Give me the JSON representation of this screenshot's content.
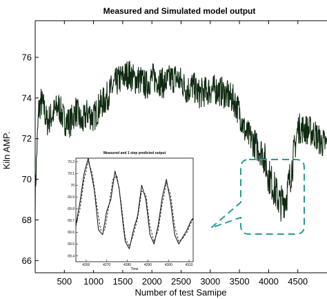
{
  "chart_data": {
    "type": "line",
    "title": "Measured and Simulated model output",
    "xlabel": "Number of test Samipe",
    "ylabel": "Kiln AMP.",
    "xlim": [
      0,
      5000
    ],
    "ylim": [
      65.4,
      77.8
    ],
    "xticks": [
      500,
      1000,
      1500,
      2000,
      2500,
      3000,
      3500,
      4000,
      4500
    ],
    "yticks": [
      66,
      68,
      70,
      72,
      74,
      76
    ],
    "line_color": "#0f2a10",
    "series": [
      {
        "x": [
          0,
          30,
          60,
          100,
          150,
          200,
          300,
          400,
          500,
          600,
          700,
          800,
          900,
          1000,
          1100,
          1200,
          1300,
          1400,
          1500,
          1600,
          1700,
          1800,
          1900,
          2000,
          2100,
          2200,
          2300,
          2400,
          2500,
          2600,
          2700,
          2800,
          2900,
          3000,
          3100,
          3200,
          3300,
          3400,
          3500,
          3600,
          3700,
          3800,
          3900,
          4000,
          4100,
          4200,
          4300,
          4400,
          4500,
          4600,
          4700,
          4800,
          4900,
          5000
        ],
        "values": [
          69.2,
          71.5,
          73.4,
          73.8,
          73.5,
          72.8,
          73.2,
          73.6,
          72.9,
          72.8,
          73.4,
          72.7,
          73.3,
          73.0,
          73.6,
          73.9,
          74.4,
          74.8,
          75.0,
          75.2,
          74.9,
          74.9,
          74.6,
          75.0,
          74.9,
          74.7,
          74.9,
          75.0,
          74.8,
          74.4,
          74.6,
          74.2,
          74.3,
          74.4,
          74.4,
          74.3,
          74.1,
          73.9,
          73.3,
          72.3,
          72.0,
          71.6,
          71.3,
          70.2,
          69.5,
          68.8,
          69.1,
          70.6,
          72.5,
          72.5,
          72.4,
          72.2,
          71.8,
          71.7
        ]
      }
    ],
    "inset": {
      "title": "Measured and 1 step predicted output",
      "xlabel": "Time",
      "xlim": [
        4255,
        4312
      ],
      "ylim": [
        69.35,
        70.23
      ],
      "xticks": [
        4260,
        4270,
        4280,
        4290,
        4300,
        4310
      ],
      "yticks": [
        69.4,
        69.5,
        69.6,
        69.7,
        69.8,
        69.9,
        70,
        70.1,
        70.2
      ],
      "series": [
        {
          "style": "solid",
          "x": [
            4255,
            4257,
            4259,
            4261,
            4262,
            4264,
            4266,
            4268,
            4270,
            4272,
            4274,
            4276,
            4278,
            4279,
            4281,
            4283,
            4285,
            4287,
            4289,
            4291,
            4293,
            4295,
            4297,
            4299,
            4301,
            4303,
            4305,
            4307,
            4309,
            4311,
            4312
          ],
          "values": [
            69.66,
            69.86,
            70.1,
            70.23,
            70.14,
            69.96,
            69.62,
            69.58,
            69.78,
            69.88,
            70.12,
            69.98,
            69.66,
            69.52,
            69.46,
            69.62,
            69.74,
            70.0,
            69.88,
            69.58,
            69.5,
            69.66,
            69.9,
            70.05,
            69.86,
            69.58,
            69.5,
            69.56,
            69.62,
            69.7,
            69.72
          ]
        },
        {
          "style": "dashed",
          "x": [
            4255,
            4257,
            4259,
            4261,
            4263,
            4265,
            4267,
            4269,
            4271,
            4273,
            4275,
            4277,
            4279,
            4281,
            4283,
            4285,
            4287,
            4289,
            4291,
            4293,
            4295,
            4297,
            4299,
            4301,
            4303,
            4305,
            4307,
            4309,
            4311,
            4312
          ],
          "values": [
            69.65,
            69.8,
            70.05,
            70.2,
            70.1,
            69.85,
            69.62,
            69.62,
            69.82,
            70.05,
            70.08,
            69.85,
            69.55,
            69.48,
            69.58,
            69.72,
            69.95,
            69.92,
            69.65,
            69.52,
            69.62,
            69.85,
            70.02,
            69.92,
            69.65,
            69.52,
            69.55,
            69.6,
            69.68,
            69.72
          ]
        }
      ]
    }
  }
}
